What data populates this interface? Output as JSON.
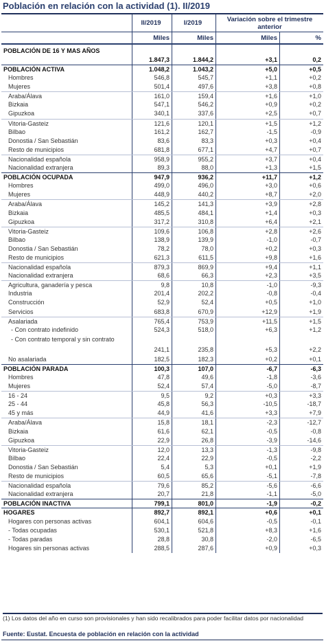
{
  "title": "Población en relación con la actividad (1). II/2019",
  "header": {
    "col_q2_2019": "II/2019",
    "col_q1_2019": "I/2019",
    "col_var": "Variación sobre el trimestre anterior",
    "unit_miles_1": "Miles",
    "unit_miles_2": "Miles",
    "unit_miles_3": "Miles",
    "unit_pct": "%"
  },
  "rows": [
    {
      "label": "POBLACIÓN DE 16 Y MAS AÑOS",
      "v1": "1.847,3",
      "v2": "1.844,2",
      "v3": "+3,1",
      "v4": "0,2",
      "style": "first"
    },
    {
      "label": "POBLACIÓN ACTIVA",
      "v1": "1.048,2",
      "v2": "1.043,2",
      "v3": "+5,0",
      "v4": "+0,5",
      "style": "bold secsep"
    },
    {
      "label": "Hombres",
      "v1": "546,8",
      "v2": "545,7",
      "v3": "+1,1",
      "v4": "+0,2",
      "style": ""
    },
    {
      "label": "Mujeres",
      "v1": "501,4",
      "v2": "497,6",
      "v3": "+3,8",
      "v4": "+0,8",
      "style": ""
    },
    {
      "label": "Araba/Álava",
      "v1": "161,0",
      "v2": "159,4",
      "v3": "+1,6",
      "v4": "+1,0",
      "style": "sep"
    },
    {
      "label": "Bizkaia",
      "v1": "547,1",
      "v2": "546,2",
      "v3": "+0,9",
      "v4": "+0,2",
      "style": ""
    },
    {
      "label": "Gipuzkoa",
      "v1": "340,1",
      "v2": "337,6",
      "v3": "+2,5",
      "v4": "+0,7",
      "style": ""
    },
    {
      "label": "Vitoria-Gasteiz",
      "v1": "121,6",
      "v2": "120,1",
      "v3": "+1,5",
      "v4": "+1,2",
      "style": "sep"
    },
    {
      "label": "Bilbao",
      "v1": "161,2",
      "v2": "162,7",
      "v3": "-1,5",
      "v4": "-0,9",
      "style": ""
    },
    {
      "label": "Donostia / San Sebastián",
      "v1": "83,6",
      "v2": "83,3",
      "v3": "+0,3",
      "v4": "+0,4",
      "style": ""
    },
    {
      "label": "Resto de municipios",
      "v1": "681,8",
      "v2": "677,1",
      "v3": "+4,7",
      "v4": "+0,7",
      "style": ""
    },
    {
      "label": "Nacionalidad española",
      "v1": "958,9",
      "v2": "955,2",
      "v3": "+3,7",
      "v4": "+0,4",
      "style": "sep"
    },
    {
      "label": "Nacionalidad extranjera",
      "v1": "89,3",
      "v2": "88,0",
      "v3": "+1,3",
      "v4": "+1,5",
      "style": ""
    },
    {
      "label": "POBLACIÓN OCUPADA",
      "v1": "947,9",
      "v2": "936,2",
      "v3": "+11,7",
      "v4": "+1,2",
      "style": "bold secsep"
    },
    {
      "label": "Hombres",
      "v1": "499,0",
      "v2": "496,0",
      "v3": "+3,0",
      "v4": "+0,6",
      "style": ""
    },
    {
      "label": "Mujeres",
      "v1": "448,9",
      "v2": "440,2",
      "v3": "+8,7",
      "v4": "+2,0",
      "style": ""
    },
    {
      "label": "Araba/Álava",
      "v1": "145,2",
      "v2": "141,3",
      "v3": "+3,9",
      "v4": "+2,8",
      "style": "sep"
    },
    {
      "label": "Bizkaia",
      "v1": "485,5",
      "v2": "484,1",
      "v3": "+1,4",
      "v4": "+0,3",
      "style": ""
    },
    {
      "label": "Gipuzkoa",
      "v1": "317,2",
      "v2": "310,8",
      "v3": "+6,4",
      "v4": "+2,1",
      "style": ""
    },
    {
      "label": "Vitoria-Gasteiz",
      "v1": "109,6",
      "v2": "106,8",
      "v3": "+2,8",
      "v4": "+2,6",
      "style": "sep"
    },
    {
      "label": "Bilbao",
      "v1": "138,9",
      "v2": "139,9",
      "v3": "-1,0",
      "v4": "-0,7",
      "style": ""
    },
    {
      "label": "Donostia / San Sebastián",
      "v1": "78,2",
      "v2": "78,0",
      "v3": "+0,2",
      "v4": "+0,3",
      "style": ""
    },
    {
      "label": "Resto de municipios",
      "v1": "621,3",
      "v2": "611,5",
      "v3": "+9,8",
      "v4": "+1,6",
      "style": ""
    },
    {
      "label": "Nacionalidad española",
      "v1": "879,3",
      "v2": "869,9",
      "v3": "+9,4",
      "v4": "+1,1",
      "style": "sep"
    },
    {
      "label": "Nacionalidad extranjera",
      "v1": "68,6",
      "v2": "66,3",
      "v3": "+2,3",
      "v4": "+3,5",
      "style": ""
    },
    {
      "label": "Agricultura, ganadería y pesca",
      "v1": "9,8",
      "v2": "10,8",
      "v3": "-1,0",
      "v4": "-9,3",
      "style": "sep"
    },
    {
      "label": "Industria",
      "v1": "201,4",
      "v2": "202,2",
      "v3": "-0,8",
      "v4": "-0,4",
      "style": ""
    },
    {
      "label": "Construcción",
      "v1": "52,9",
      "v2": "52,4",
      "v3": "+0,5",
      "v4": "+1,0",
      "style": ""
    },
    {
      "label": "Servicios",
      "v1": "683,8",
      "v2": "670,9",
      "v3": "+12,9",
      "v4": "+1,9",
      "style": ""
    },
    {
      "label": "Asalariada",
      "v1": "765,4",
      "v2": "753,9",
      "v3": "+11,5",
      "v4": "+1,5",
      "style": "sep"
    },
    {
      "label": "- Con contrato indefinido",
      "v1": "524,3",
      "v2": "518,0",
      "v3": "+6,3",
      "v4": "+1,2",
      "style": "sub"
    },
    {
      "label": "- Con contrato temporal y sin contrato",
      "v1": "241,1",
      "v2": "235,8",
      "v3": "+5,3",
      "v4": "+2,2",
      "style": "sub2"
    },
    {
      "label": "No asalariada",
      "v1": "182,5",
      "v2": "182,3",
      "v3": "+0,2",
      "v4": "+0,1",
      "style": ""
    },
    {
      "label": "POBLACIÓN PARADA",
      "v1": "100,3",
      "v2": "107,0",
      "v3": "-6,7",
      "v4": "-6,3",
      "style": "bold secsep"
    },
    {
      "label": "Hombres",
      "v1": "47,8",
      "v2": "49,6",
      "v3": "-1,8",
      "v4": "-3,6",
      "style": ""
    },
    {
      "label": "Mujeres",
      "v1": "52,4",
      "v2": "57,4",
      "v3": "-5,0",
      "v4": "-8,7",
      "style": ""
    },
    {
      "label": "16 - 24",
      "v1": "9,5",
      "v2": "9,2",
      "v3": "+0,3",
      "v4": "+3,3",
      "style": "sep"
    },
    {
      "label": "25 - 44",
      "v1": "45,8",
      "v2": "56,3",
      "v3": "-10,5",
      "v4": "-18,7",
      "style": ""
    },
    {
      "label": "45  y más",
      "v1": "44,9",
      "v2": "41,6",
      "v3": "+3,3",
      "v4": "+7,9",
      "style": ""
    },
    {
      "label": "Araba/Álava",
      "v1": "15,8",
      "v2": "18,1",
      "v3": "-2,3",
      "v4": "-12,7",
      "style": "sep"
    },
    {
      "label": "Bizkaia",
      "v1": "61,6",
      "v2": "62,1",
      "v3": "-0,5",
      "v4": "-0,8",
      "style": ""
    },
    {
      "label": "Gipuzkoa",
      "v1": "22,9",
      "v2": "26,8",
      "v3": "-3,9",
      "v4": "-14,6",
      "style": ""
    },
    {
      "label": "Vitoria-Gasteiz",
      "v1": "12,0",
      "v2": "13,3",
      "v3": "-1,3",
      "v4": "-9,8",
      "style": "sep"
    },
    {
      "label": "Bilbao",
      "v1": "22,4",
      "v2": "22,9",
      "v3": "-0,5",
      "v4": "-2,2",
      "style": ""
    },
    {
      "label": "Donostia / San Sebastián",
      "v1": "5,4",
      "v2": "5,3",
      "v3": "+0,1",
      "v4": "+1,9",
      "style": ""
    },
    {
      "label": "Resto de municipios",
      "v1": "60,5",
      "v2": "65,6",
      "v3": "-5,1",
      "v4": "-7,8",
      "style": ""
    },
    {
      "label": "Nacionalidad española",
      "v1": "79,6",
      "v2": "85,2",
      "v3": "-5,6",
      "v4": "-6,6",
      "style": "sep"
    },
    {
      "label": "Nacionalidad extranjera",
      "v1": "20,7",
      "v2": "21,8",
      "v3": "-1,1",
      "v4": "-5,0",
      "style": ""
    },
    {
      "label": "POBLACIÓN INACTIVA",
      "v1": "799,1",
      "v2": "801,0",
      "v3": "-1,9",
      "v4": "-0,2",
      "style": "bold secsep"
    },
    {
      "label": "HOGARES",
      "v1": "892,7",
      "v2": "892,1",
      "v3": "+0,6",
      "v4": "+0,1",
      "style": "bold secsep"
    },
    {
      "label": "Hogares con personas activas",
      "v1": "604,1",
      "v2": "604,6",
      "v3": "-0,5",
      "v4": "-0,1",
      "style": ""
    },
    {
      "label": "- Todas ocupadas",
      "v1": "530,1",
      "v2": "521,8",
      "v3": "+8,3",
      "v4": "+1,6",
      "style": ""
    },
    {
      "label": "- Todas paradas",
      "v1": "28,8",
      "v2": "30,8",
      "v3": "-2,0",
      "v4": "-6,5",
      "style": ""
    },
    {
      "label": "Hogares sin personas activas",
      "v1": "288,5",
      "v2": "287,6",
      "v3": "+0,9",
      "v4": "+0,3",
      "style": ""
    }
  ],
  "footnote": "(1) Los datos del año en curso son provisionales y han sido recalibrados para poder facilitar datos por nacionalidad",
  "source": "Fuente: Eustat. Encuesta de población en relación con la actividad"
}
